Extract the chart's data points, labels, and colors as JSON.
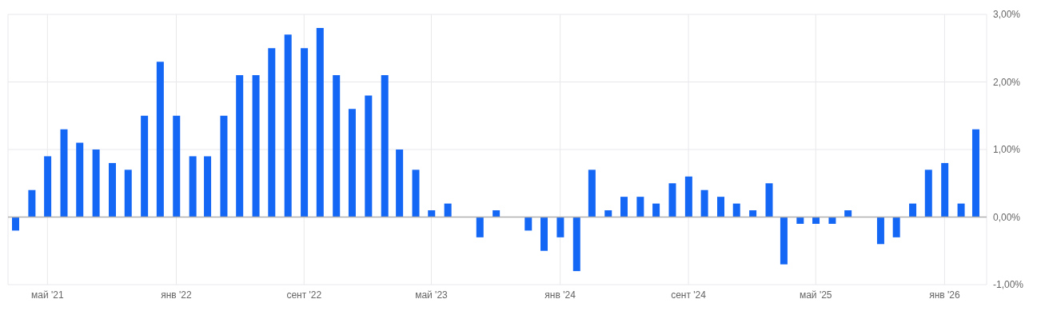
{
  "chart_data": {
    "type": "bar",
    "x": [
      "2021-03",
      "2021-04",
      "2021-05",
      "2021-06",
      "2021-07",
      "2021-08",
      "2021-09",
      "2021-10",
      "2021-11",
      "2021-12",
      "2022-01",
      "2022-02",
      "2022-03",
      "2022-04",
      "2022-05",
      "2022-06",
      "2022-07",
      "2022-08",
      "2022-09",
      "2022-10",
      "2022-11",
      "2022-12",
      "2023-01",
      "2023-02",
      "2023-03",
      "2023-04",
      "2023-05",
      "2023-06",
      "2023-07",
      "2023-08",
      "2023-09",
      "2023-10",
      "2023-11",
      "2023-12",
      "2024-01",
      "2024-02",
      "2024-03",
      "2024-04",
      "2024-05",
      "2024-06",
      "2024-07",
      "2024-08",
      "2024-09",
      "2024-10",
      "2024-11",
      "2024-12",
      "2025-01",
      "2025-02",
      "2025-03",
      "2025-04",
      "2025-05",
      "2025-06",
      "2025-07",
      "2025-08",
      "2025-09",
      "2025-10",
      "2025-11",
      "2025-12",
      "2026-01",
      "2026-02",
      "2026-03"
    ],
    "values": [
      -0.2,
      0.4,
      0.9,
      1.3,
      1.1,
      1.0,
      0.8,
      0.7,
      1.5,
      2.3,
      1.5,
      0.9,
      0.9,
      1.5,
      2.1,
      2.1,
      2.5,
      2.7,
      2.5,
      2.8,
      2.1,
      1.6,
      1.8,
      2.1,
      1.0,
      0.7,
      0.1,
      0.2,
      0,
      -0.3,
      0.1,
      0,
      -0.2,
      -0.5,
      -0.3,
      -0.8,
      0.7,
      0.1,
      0.3,
      0.3,
      0.2,
      0.5,
      0.6,
      0.4,
      0.3,
      0.2,
      0.1,
      0.5,
      -0.7,
      -0.1,
      -0.1,
      -0.1,
      0.1,
      0,
      -0.4,
      -0.3,
      0.2,
      0.7,
      0.8,
      0.2,
      1.3
    ],
    "color": "#1466f5",
    "xlim": [
      "2021-02-15",
      "2026-03-22"
    ],
    "xticks": [
      {
        "value": "2021-05",
        "label": "май '21"
      },
      {
        "value": "2022-01",
        "label": "янв '22"
      },
      {
        "value": "2022-09",
        "label": "сент '22"
      },
      {
        "value": "2023-05",
        "label": "май '23"
      },
      {
        "value": "2024-01",
        "label": "янв '24"
      },
      {
        "value": "2024-09",
        "label": "сент '24"
      },
      {
        "value": "2025-05",
        "label": "май '25"
      },
      {
        "value": "2026-01",
        "label": "янв '26"
      }
    ],
    "ylim": [
      -1,
      3
    ],
    "yticks": [
      {
        "value": -1,
        "label": "-1,00%"
      },
      {
        "value": 0,
        "label": "0,00%"
      },
      {
        "value": 1,
        "label": "1,00%"
      },
      {
        "value": 2,
        "label": "2,00%"
      },
      {
        "value": 3,
        "label": "3,00%"
      }
    ],
    "ref_lines": [
      {
        "axis": "y",
        "value": 0,
        "color": "#b0b0b0"
      }
    ],
    "grid": true
  }
}
